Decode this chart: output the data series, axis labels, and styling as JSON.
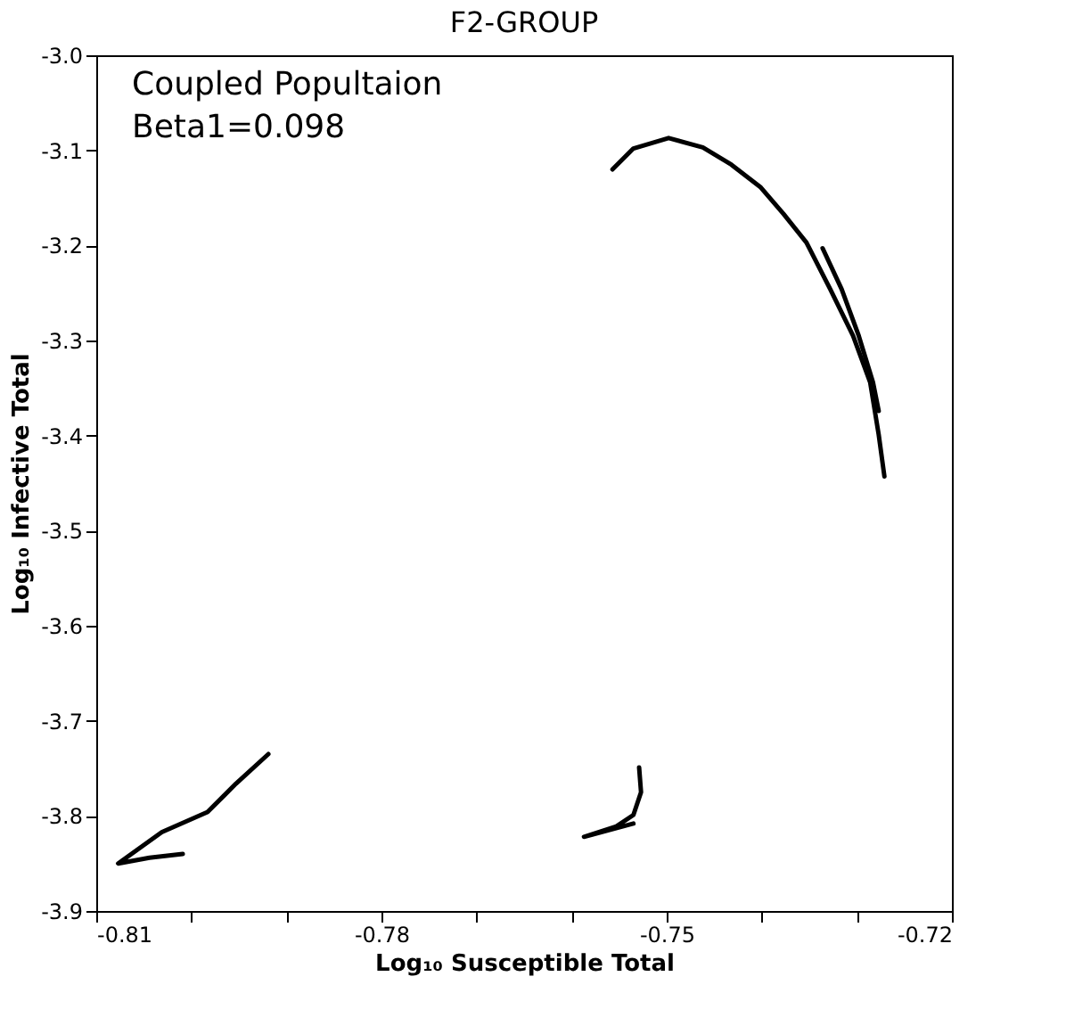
{
  "chart_data": {
    "type": "line",
    "title": "F2-GROUP",
    "xlabel": "Log₁₀ Susceptible Total",
    "ylabel": "Log₁₀ Infective Total",
    "annotations": [
      "Coupled Popultaion",
      "Beta1=0.098"
    ],
    "xlim": [
      -0.81,
      -0.72
    ],
    "ylim": [
      -3.9,
      -3.0
    ],
    "xticks": [
      -0.81,
      {
        "value": -0.8,
        "label": null
      },
      {
        "value": -0.79,
        "label": null
      },
      -0.78,
      {
        "value": -0.77,
        "label": null
      },
      {
        "value": -0.76,
        "label": null
      },
      -0.75,
      {
        "value": -0.74,
        "label": null
      },
      {
        "value": -0.73,
        "label": null
      },
      -0.72
    ],
    "yticks": [
      -3.9,
      -3.8,
      -3.7,
      -3.6,
      -3.5,
      -3.4,
      -3.3,
      -3.2,
      -3.1,
      {
        "value": -3.0,
        "label": "-3.0"
      }
    ],
    "grid": false,
    "marker": "none",
    "line_style": "solid",
    "series": [
      {
        "color": "#000000",
        "x": [
          -0.7557,
          -0.7535,
          -0.7498,
          -0.7462,
          -0.7432,
          -0.7401,
          -0.7377,
          -0.7353,
          -0.7328,
          -0.7304,
          -0.7286,
          -0.7277,
          -0.7271
        ],
        "values": [
          -3.12,
          -3.098,
          -3.087,
          -3.097,
          -3.115,
          -3.139,
          -3.167,
          -3.197,
          -3.246,
          -3.295,
          -3.344,
          -3.399,
          -3.443
        ]
      },
      {
        "color": "#000000",
        "x": [
          -0.7336,
          -0.7316,
          -0.7298,
          -0.7283,
          -0.7277
        ],
        "values": [
          -3.203,
          -3.246,
          -3.295,
          -3.344,
          -3.374
        ]
      },
      {
        "color": "#000000",
        "x": [
          -0.7529,
          -0.7527,
          -0.7535,
          -0.7553,
          -0.7587,
          -0.7535
        ],
        "values": [
          -3.749,
          -3.775,
          -3.799,
          -3.811,
          -3.822,
          -3.808
        ]
      },
      {
        "color": "#000000",
        "x": [
          -0.7919,
          -0.7953,
          -0.7983,
          -0.8031,
          -0.8077,
          -0.8044,
          -0.8009
        ],
        "values": [
          -3.735,
          -3.766,
          -3.796,
          -3.817,
          -3.85,
          -3.844,
          -3.84
        ]
      }
    ]
  }
}
